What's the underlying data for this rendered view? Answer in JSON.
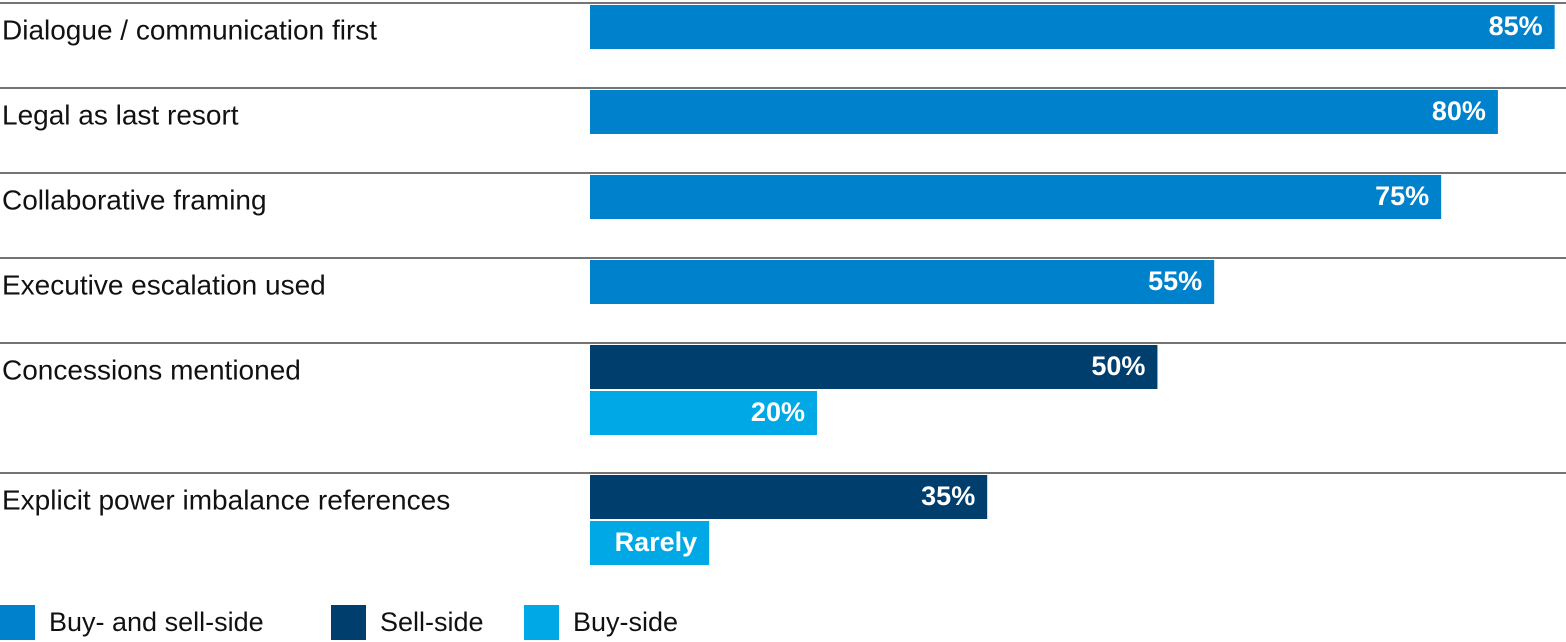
{
  "chart_data": {
    "type": "hbar",
    "categories": [
      "Dialogue / communication first",
      "Legal as last resort",
      "Collaborative framing",
      "Executive escalation used",
      "Concessions mentioned",
      "Explicit power imbalance references"
    ],
    "series": [
      {
        "name": "Buy- and sell-side",
        "color": "#0081cc",
        "values": [
          85,
          80,
          75,
          55,
          null,
          null
        ],
        "value_labels": [
          "85%",
          "80%",
          "75%",
          "55%",
          null,
          null
        ]
      },
      {
        "name": "Sell-side",
        "color": "#003e6e",
        "values": [
          null,
          null,
          null,
          null,
          50,
          35
        ],
        "value_labels": [
          null,
          null,
          null,
          null,
          "50%",
          "35%"
        ]
      },
      {
        "name": "Buy-side",
        "color": "#00a9e6",
        "values": [
          null,
          null,
          null,
          null,
          20,
          10.5
        ],
        "value_labels": [
          null,
          null,
          null,
          null,
          "20%",
          "Rarely"
        ]
      }
    ],
    "xlim": [
      0,
      86
    ]
  }
}
